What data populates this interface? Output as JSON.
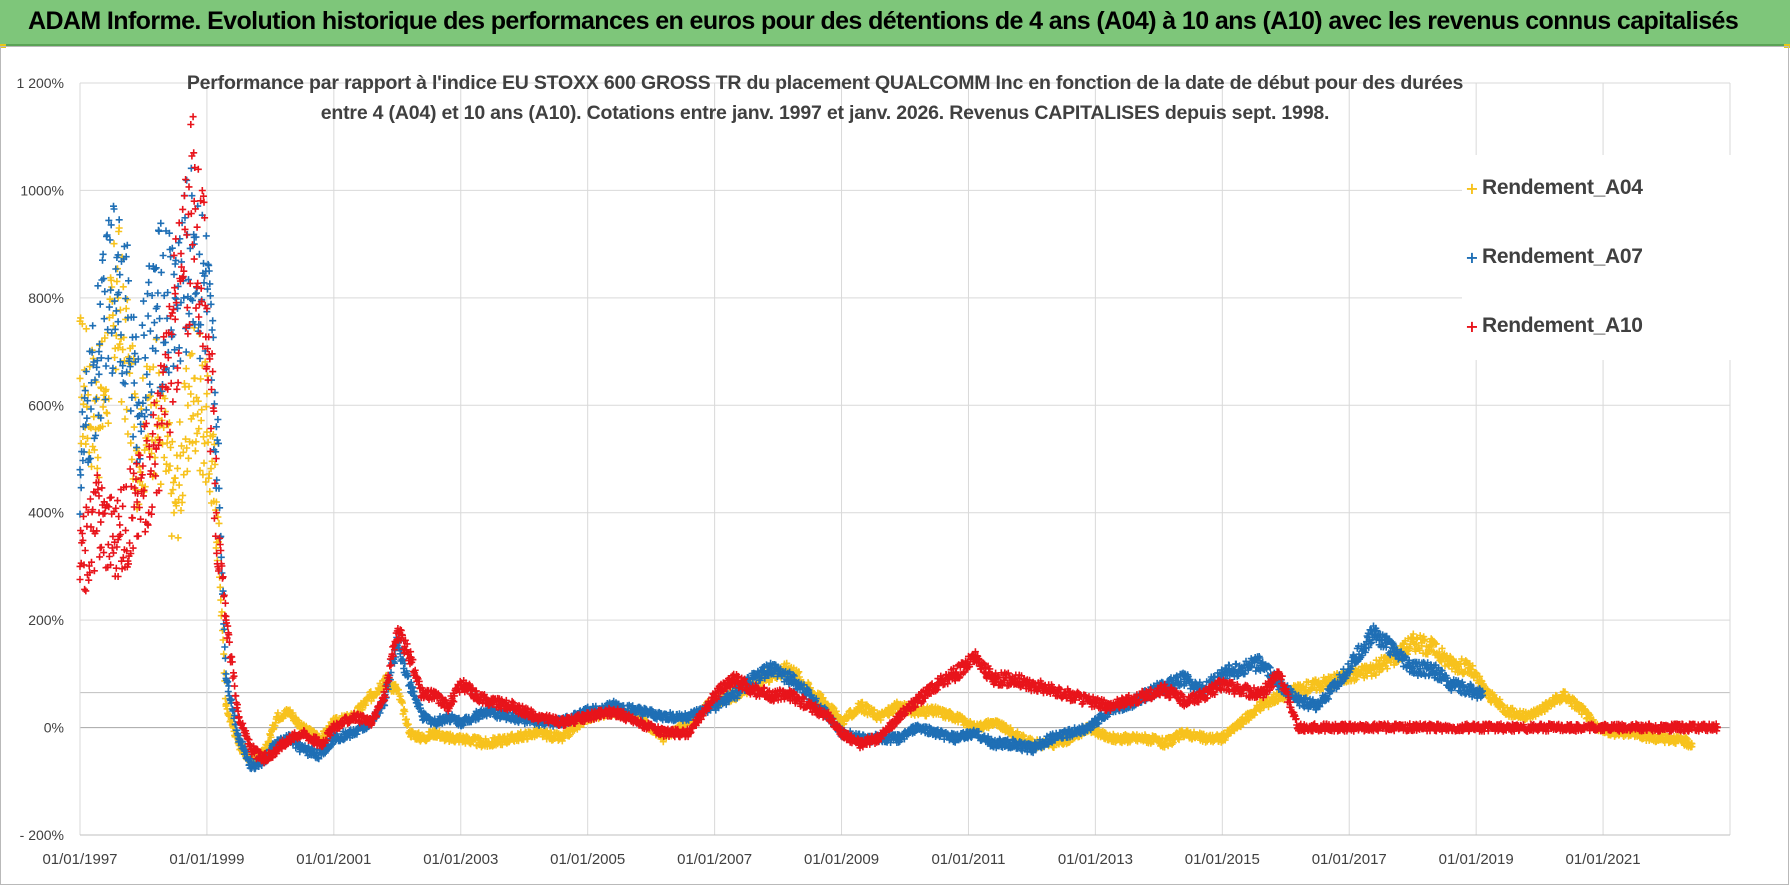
{
  "banner": {
    "title": "ADAM Informe. Evolution historique des performances en euros pour des détentions de 4 ans (A04) à 10 ans (A10) avec les revenus connus capitalisés"
  },
  "colors": {
    "A04": "#f7c21d",
    "A07": "#1f6fb5",
    "A10": "#e8141b",
    "banner": "#7ec67a",
    "grid": "#d9d9d9"
  },
  "chart_data": {
    "type": "scatter",
    "title_lines": [
      "Performance par rapport à l'indice EU STOXX 600 GROSS TR  du placement QUALCOMM Inc en fonction de la date de début pour des durées",
      "entre 4 (A04) et 10 ans (A10).  Cotations entre janv. 1997 et janv. 2026. Revenus CAPITALISES depuis sept. 1998."
    ],
    "marker": "+",
    "y_unit": "%",
    "ylim": [
      -200,
      1200
    ],
    "y_ticks": [
      -200,
      0,
      200,
      400,
      600,
      800,
      1000,
      1200
    ],
    "y_tick_labels": [
      "- 200%",
      "0%",
      "200%",
      "400%",
      "600%",
      "800%",
      "1000%",
      "1 200%"
    ],
    "xlim": [
      1997.0,
      2023.0
    ],
    "x_ticks": [
      1997,
      1999,
      2001,
      2003,
      2005,
      2007,
      2009,
      2011,
      2013,
      2015,
      2017,
      2019,
      2021
    ],
    "x_tick_labels": [
      "01/01/1997",
      "01/01/1999",
      "01/01/2001",
      "01/01/2003",
      "01/01/2005",
      "01/01/2007",
      "01/01/2009",
      "01/01/2011",
      "01/01/2013",
      "01/01/2015",
      "01/01/2017",
      "01/01/2019",
      "01/01/2021"
    ],
    "legend": [
      "Rendement_A04",
      "Rendement_A07",
      "Rendement_A10"
    ],
    "series": [
      {
        "name": "Rendement_A04",
        "color": "#f7c21d",
        "x": [
          1997.0,
          1997.3,
          1997.6,
          1997.9,
          1998.2,
          1998.5,
          1998.8,
          1999.0,
          1999.15,
          1999.3,
          1999.5,
          1999.7,
          1999.9,
          2000.1,
          2000.3,
          2000.5,
          2000.8,
          2001.0,
          2001.3,
          2001.6,
          2001.8,
          2002.0,
          2002.2,
          2002.4,
          2002.6,
          2002.8,
          2003.0,
          2003.4,
          2003.8,
          2004.2,
          2004.6,
          2005.0,
          2005.4,
          2005.8,
          2006.2,
          2006.6,
          2007.0,
          2007.3,
          2007.6,
          2007.9,
          2008.2,
          2008.5,
          2008.8,
          2009.0,
          2009.3,
          2009.6,
          2009.9,
          2010.2,
          2010.5,
          2010.8,
          2011.1,
          2011.4,
          2011.7,
          2012.0,
          2012.3,
          2012.6,
          2012.9,
          2013.2,
          2013.5,
          2013.8,
          2014.1,
          2014.4,
          2014.7,
          2015.0,
          2015.3,
          2015.6,
          2015.9,
          2016.2,
          2016.5,
          2016.8,
          2017.1,
          2017.4,
          2017.7,
          2018.0,
          2018.3,
          2018.6,
          2018.9,
          2019.2,
          2019.5,
          2019.8,
          2020.1,
          2020.4,
          2020.7,
          2020.9,
          2021.2,
          2021.5,
          2021.8,
          2022.1,
          2022.4
        ],
        "y": [
          650,
          580,
          800,
          520,
          600,
          420,
          650,
          550,
          420,
          40,
          -30,
          -60,
          -50,
          20,
          30,
          0,
          -20,
          10,
          20,
          60,
          90,
          70,
          -10,
          -20,
          -10,
          -20,
          -20,
          -30,
          -20,
          -10,
          -20,
          20,
          30,
          20,
          -20,
          10,
          50,
          60,
          80,
          100,
          110,
          70,
          40,
          10,
          40,
          20,
          40,
          30,
          30,
          20,
          0,
          10,
          -10,
          -30,
          -30,
          -20,
          0,
          -20,
          -20,
          -20,
          -30,
          -10,
          -20,
          -20,
          10,
          40,
          60,
          70,
          80,
          90,
          100,
          110,
          130,
          160,
          150,
          120,
          110,
          60,
          30,
          20,
          40,
          60,
          30,
          0,
          -10,
          -10,
          -20,
          -20,
          -30
        ]
      },
      {
        "name": "Rendement_A07",
        "color": "#1f6fb5",
        "x": [
          1997.0,
          1997.3,
          1997.6,
          1997.9,
          1998.2,
          1998.5,
          1998.8,
          1999.0,
          1999.15,
          1999.3,
          1999.5,
          1999.7,
          1999.9,
          2000.1,
          2000.3,
          2000.5,
          2000.8,
          2001.0,
          2001.3,
          2001.6,
          2001.8,
          2002.0,
          2002.2,
          2002.4,
          2002.6,
          2002.8,
          2003.0,
          2003.4,
          2003.8,
          2004.2,
          2004.6,
          2005.0,
          2005.4,
          2005.8,
          2006.2,
          2006.6,
          2007.0,
          2007.3,
          2007.6,
          2007.9,
          2008.2,
          2008.5,
          2008.8,
          2009.0,
          2009.3,
          2009.6,
          2009.9,
          2010.2,
          2010.5,
          2010.8,
          2011.1,
          2011.4,
          2011.7,
          2012.0,
          2012.3,
          2012.6,
          2012.9,
          2013.2,
          2013.5,
          2013.8,
          2014.1,
          2014.4,
          2014.7,
          2015.0,
          2015.3,
          2015.6,
          2015.9,
          2016.2,
          2016.5,
          2016.8,
          2017.1,
          2017.4,
          2017.7,
          2018.0,
          2018.3,
          2018.6,
          2018.9,
          2019.1
        ],
        "y": [
          480,
          700,
          880,
          600,
          780,
          800,
          900,
          780,
          560,
          100,
          -20,
          -70,
          -60,
          -30,
          -20,
          -40,
          -50,
          -20,
          -10,
          10,
          50,
          160,
          80,
          20,
          10,
          20,
          10,
          30,
          20,
          10,
          10,
          30,
          40,
          30,
          20,
          20,
          40,
          60,
          90,
          110,
          90,
          60,
          20,
          -10,
          -20,
          -20,
          -20,
          0,
          -10,
          -20,
          -10,
          -30,
          -30,
          -40,
          -20,
          -10,
          0,
          30,
          40,
          60,
          80,
          90,
          70,
          100,
          110,
          120,
          80,
          50,
          40,
          80,
          130,
          180,
          140,
          110,
          110,
          80,
          70,
          60
        ]
      },
      {
        "name": "Rendement_A10",
        "color": "#e8141b",
        "x": [
          1997.0,
          1997.3,
          1997.6,
          1997.9,
          1998.2,
          1998.5,
          1998.8,
          1999.0,
          1999.15,
          1999.3,
          1999.5,
          1999.7,
          1999.9,
          2000.1,
          2000.3,
          2000.5,
          2000.8,
          2001.0,
          2001.3,
          2001.6,
          2001.8,
          2002.0,
          2002.2,
          2002.4,
          2002.6,
          2002.8,
          2003.0,
          2003.4,
          2003.8,
          2004.2,
          2004.6,
          2005.0,
          2005.4,
          2005.8,
          2006.2,
          2006.6,
          2007.0,
          2007.3,
          2007.6,
          2007.9,
          2008.2,
          2008.5,
          2008.8,
          2009.0,
          2009.3,
          2009.6,
          2009.9,
          2010.2,
          2010.5,
          2010.8,
          2011.1,
          2011.4,
          2011.7,
          2012.0,
          2012.3,
          2012.6,
          2012.9,
          2013.2,
          2013.5,
          2013.8,
          2014.1,
          2014.4,
          2014.7,
          2015.0,
          2015.3,
          2015.6,
          2015.9,
          2016.2,
          2016.5,
          2016.8,
          2017.2,
          2017.6,
          2018.0,
          2018.4,
          2018.8,
          2019.2,
          2019.6,
          2020.0,
          2020.4,
          2020.8,
          2021.2,
          2021.6,
          2022.0,
          2022.4,
          2022.8
        ],
        "y": [
          300,
          400,
          350,
          420,
          520,
          760,
          980,
          780,
          400,
          200,
          20,
          -40,
          -60,
          -40,
          -20,
          -10,
          -30,
          0,
          20,
          10,
          60,
          180,
          130,
          60,
          60,
          40,
          80,
          50,
          40,
          20,
          10,
          20,
          30,
          10,
          -10,
          -10,
          60,
          90,
          70,
          60,
          60,
          40,
          20,
          -10,
          -30,
          -20,
          20,
          50,
          80,
          100,
          130,
          90,
          90,
          80,
          70,
          60,
          50,
          40,
          50,
          60,
          70,
          50,
          60,
          80,
          70,
          60,
          100,
          0,
          0,
          0,
          0,
          0,
          0,
          0,
          0,
          0,
          0,
          0,
          0,
          0,
          0,
          0,
          0,
          0,
          0
        ]
      }
    ]
  }
}
